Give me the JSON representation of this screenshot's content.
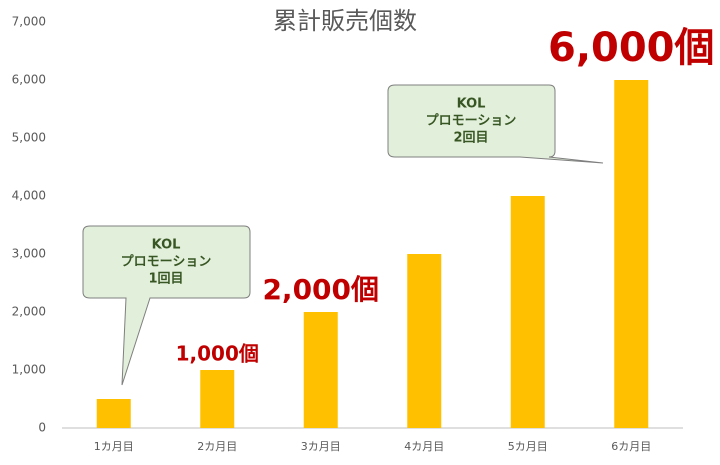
{
  "chart_data": {
    "type": "bar",
    "title": "累計販売個数",
    "categories": [
      "1カ月目",
      "2カ月目",
      "3カ月目",
      "4カ月目",
      "5カ月目",
      "6カ月目"
    ],
    "values": [
      500,
      1000,
      2000,
      3000,
      4000,
      6000
    ],
    "value_labels": [
      null,
      "1,000個",
      "2,000個",
      null,
      null,
      "6,000個"
    ],
    "color": "#ffc000",
    "ylim": [
      0,
      7000
    ],
    "yticks": [
      0,
      {
        "value": 1000,
        "label": "1,000"
      },
      {
        "value": 2000,
        "label": "2,000"
      },
      {
        "value": 3000,
        "label": "3,000"
      },
      {
        "value": 4000,
        "label": "4,000"
      },
      {
        "value": 5000,
        "label": "5,000"
      },
      {
        "value": 6000,
        "label": "6,000"
      },
      {
        "value": 7000,
        "label": "7,000"
      }
    ],
    "grid": false,
    "annotations": [
      {
        "lines": [
          "KOL",
          "プロモーション",
          "1回目"
        ]
      },
      {
        "lines": [
          "KOL",
          "プロモーション",
          "2回目"
        ]
      }
    ]
  }
}
